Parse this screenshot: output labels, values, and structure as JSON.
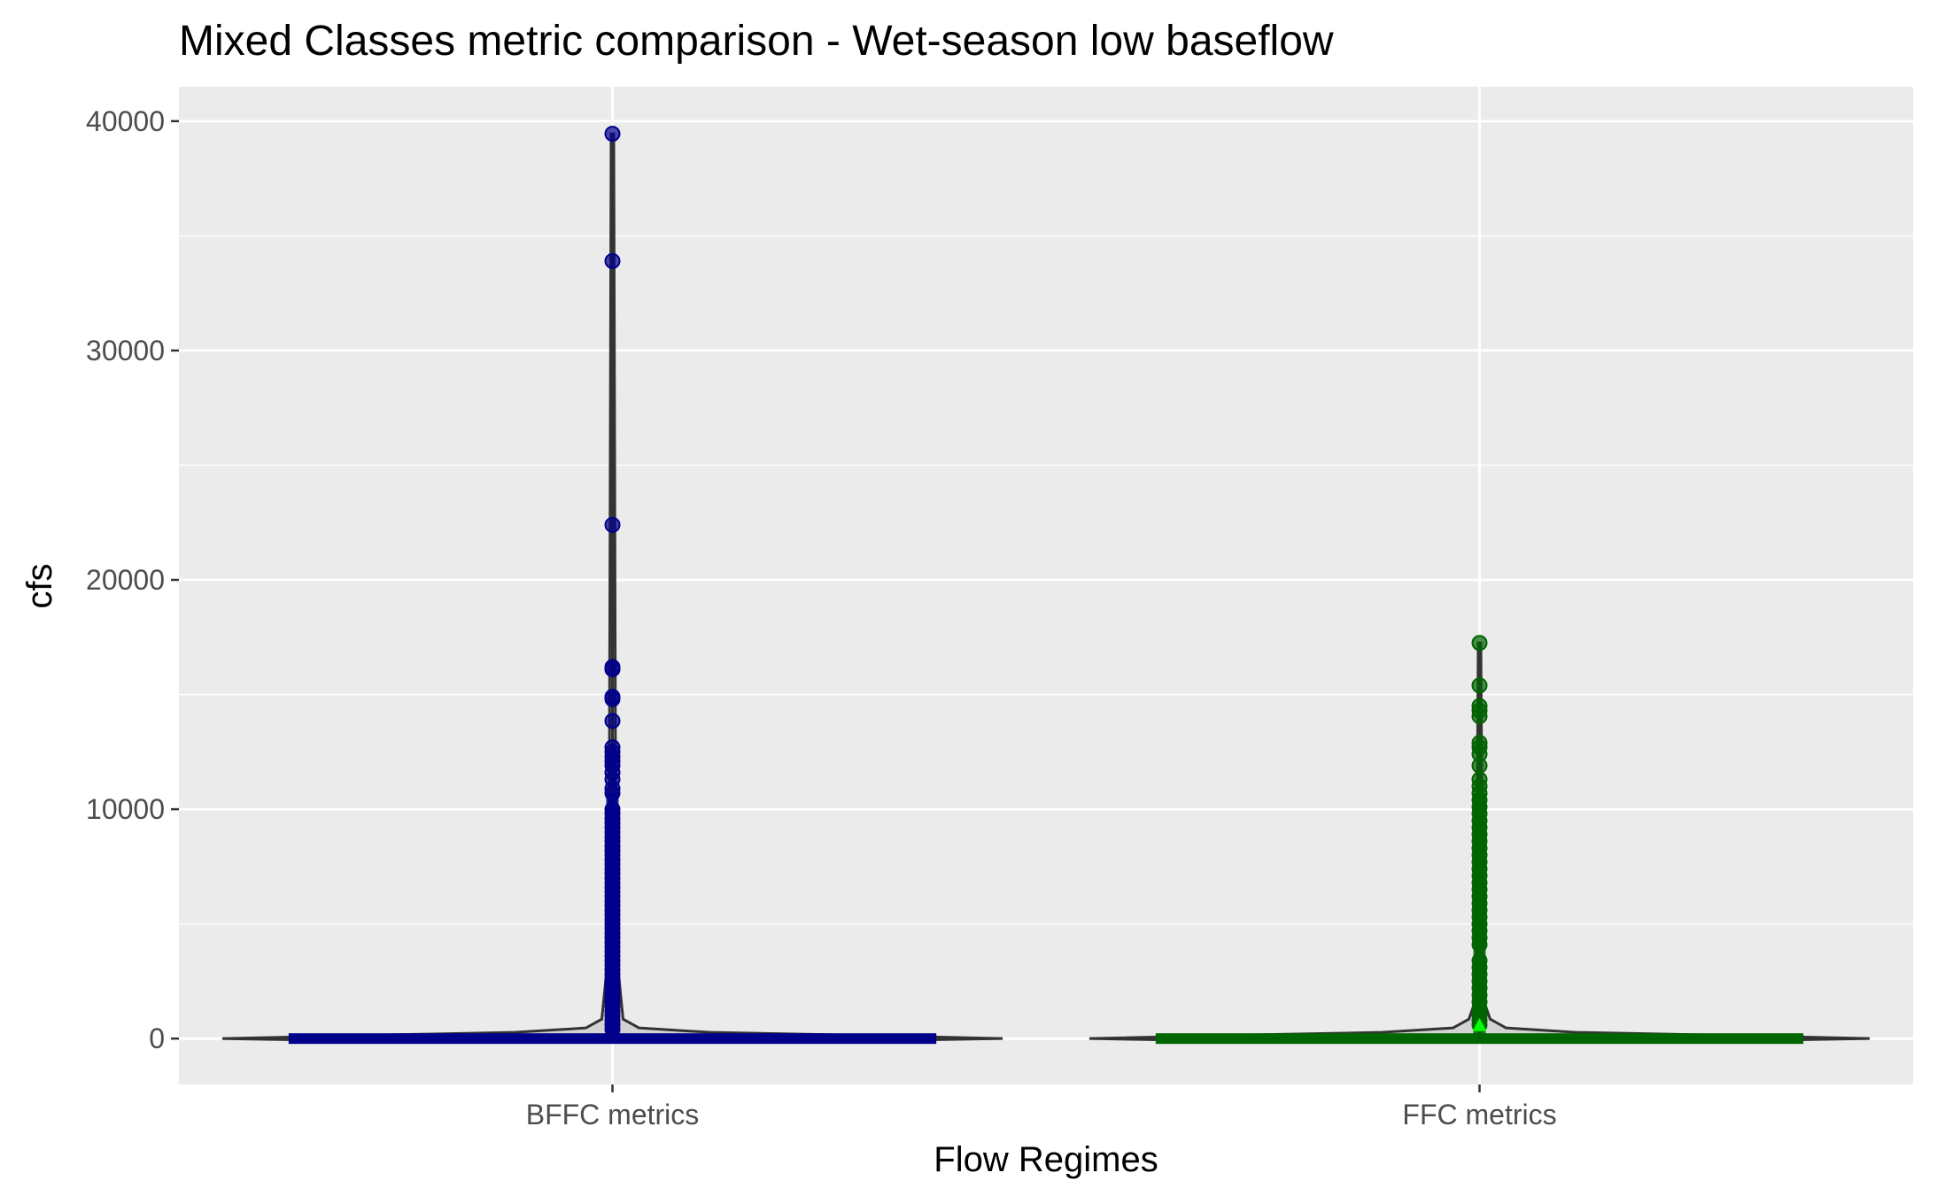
{
  "chart_data": {
    "type": "violin",
    "title": "Mixed Classes metric comparison - Wet-season low baseflow",
    "xlabel": "Flow Regimes",
    "ylabel": "cfs",
    "ylim": [
      -2000,
      41500
    ],
    "yticks": [
      0,
      10000,
      20000,
      30000,
      40000
    ],
    "ytick_labels": [
      "0",
      "10000",
      "20000",
      "30000",
      "40000"
    ],
    "categories": [
      "BFFC metrics",
      "FFC metrics"
    ],
    "grid": true,
    "legend": "none",
    "colors": {
      "panel": "#ebebeb",
      "grid": "#ffffff",
      "outline": "#333333",
      "BFFC metrics": "#00008b",
      "FFC metrics": "#006400",
      "FFC metrics mean": "#00ff00"
    },
    "series": [
      {
        "category": "BFFC metrics",
        "max": 39450,
        "outliers": [
          39450,
          33900,
          22400,
          16200,
          16100,
          14900,
          14800,
          13850,
          12700,
          12500,
          12300,
          12100,
          11900,
          11600,
          11300,
          10900,
          10700,
          10000,
          9800,
          9600,
          9400,
          9200,
          9000,
          8800,
          8600,
          8400,
          8200,
          8000,
          7800,
          7600,
          7400,
          7200,
          7000,
          6800,
          6600,
          6400,
          6200,
          6000,
          5800,
          5600,
          5400,
          5200,
          5000,
          4800,
          4600,
          4400,
          4200,
          4000,
          3800,
          3600,
          3400,
          3200,
          3000,
          2800,
          2600,
          2400,
          2200,
          2000,
          1800,
          1600,
          1400,
          1200,
          1000,
          800,
          600,
          400
        ]
      },
      {
        "category": "FFC metrics",
        "max": 17250,
        "mean": 550,
        "outliers": [
          17250,
          15400,
          14500,
          14300,
          14050,
          12900,
          12700,
          12400,
          11900,
          11300,
          11000,
          10700,
          10400,
          10100,
          9800,
          9500,
          9200,
          8900,
          8600,
          8300,
          8000,
          7700,
          7400,
          7100,
          6800,
          6500,
          6200,
          5900,
          5600,
          5300,
          5000,
          4700,
          4400,
          4100,
          3400,
          3100,
          2800,
          2500,
          2200,
          1900,
          1600,
          1300,
          1000,
          800,
          600
        ]
      }
    ]
  }
}
